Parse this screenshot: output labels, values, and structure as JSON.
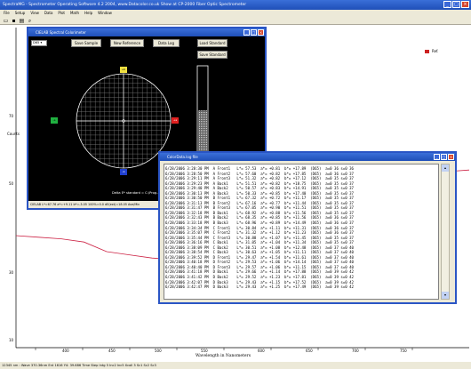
{
  "app": {
    "title": "SpectraMG - Spectrometer Operating Software 4.2 2004, www.Datacolor.co.uk  Show at CP-2000 Fiber Optic Spectrometer",
    "menu": [
      "File",
      "Setup",
      "View",
      "Data",
      "Plot",
      "Math",
      "Help",
      "Window"
    ],
    "toolbar_icons": [
      "open-icon",
      "save-icon",
      "print-icon",
      "zoom-icon"
    ],
    "legend_label": "Ref.",
    "x_axis_label": "Wavelength in Nanometers",
    "y_axis_label": "Counts",
    "y_ticks": [
      "70",
      "50",
      "30",
      "10"
    ],
    "x_ticks": [
      "400",
      "450",
      "500",
      "550",
      "600",
      "650",
      "700",
      "750"
    ],
    "status": "12345 nm :  Wave 370.36nm  Ent 1616  Y4: 39.686  Time Step  Intg 5  Inc2  Inc5  Xcoll 3  Sc1  Sc2  Sc3"
  },
  "chart_data": {
    "type": "line",
    "series": [
      {
        "name": "Ref.",
        "x": [
          380,
          400,
          420,
          440,
          460,
          480,
          500,
          520,
          540,
          560,
          580,
          600,
          620,
          640,
          660,
          680,
          700,
          720,
          740,
          760,
          780
        ],
        "values": [
          35,
          34.5,
          34,
          33,
          30,
          29,
          28,
          27.5,
          27,
          26,
          25,
          27,
          32,
          37,
          44,
          50,
          54,
          54.6,
          55,
          55,
          55.5
        ]
      }
    ],
    "xlim": [
      380,
      780
    ],
    "ylim": [
      0,
      100
    ],
    "grid": false,
    "legend": "top-right"
  },
  "cielab": {
    "title": "CIELAB Spectral Colorimeter",
    "observer": "D65",
    "buttons": {
      "save_sample": "Save Sample",
      "new_reference": "New Reference",
      "data_log": "Data Log",
      "load_standard": "Load Standard",
      "save_standard": "Save Standard"
    },
    "markers": {
      "top": "+b",
      "bottom": "-b",
      "left": "-a",
      "right": "+a"
    },
    "standard_text": "Delta E* standard = C:\\Prog...",
    "status": "CIELAB L*=67.76  a*=+9.11  b*=-3.05  100%=0.0  dE(ext)=18.05  Ave/Min",
    "lightness_fraction": 0.62
  },
  "log": {
    "title": "ColorData.log file",
    "lines": [
      "6/28/2006 3:28:30 PM  A Front1   L*= 57.53  a*= +0.81  b*= +17.89  (D65)  a=0 36 s=0 36",
      "6/28/2006 3:28:50 PM  A Front2   L*= 57.60  a*= +0.82  b*= +17.85  (D65)  a=0 36 s=0 37",
      "6/28/2006 3:29:11 PM  A Front3   L*= 51.32  a*= +0.82  b*= +17.12  (D65)  a=0 35 s=0 37",
      "6/28/2006 3:29:23 PM  A Back1    L*= 51.51  a*= +0.82  b*= +18.75  (D65)  a=0 35 s=0 37",
      "6/28/2006 3:29:40 PM  A Back2    L*= 50.57  a*= +0.83  b*= +14.91  (D65)  a=0 35 s=0 37",
      "6/28/2006 3:30:13 PM  A Back3    L*= 50.33  a*= +0.85  b*= +17.40  (D65)  a=0 35 s=0 37",
      "6/28/2006 3:30:50 PM  B Front1   L*= 67.32  a*= +0.72  b*= +11.17  (D65)  a=0 35 s=0 37",
      "6/28/2006 3:31:13 PM  B Front2   L*= 67.16  a*= +0.77  b*= +11.44  (D65)  a=0 35 s=0 37",
      "6/28/2006 3:31:47 PM  B Front3   L*= 67.05  a*= +0.90  b*= +11.51  (D65)  a=0 35 s=0 37",
      "6/28/2006 3:32:18 PM  B Back1    L*= 68.92  a*= +0.88  b*= +11.56  (D65)  a=0 35 s=0 37",
      "6/28/2006 3:32:43 PM  B Back2    L*= 68.35  a*= +0.85  b*= +11.56  (D65)  a=0 36 s=0 37",
      "6/28/2006 3:33:18 PM  B Back3    L*= 68.96  a*= +0.89  b*= +14.49  (D65)  a=0 36 s=0 37",
      "6/28/2006 3:34:34 PM  C Front1   L*= 30.84  a*= +1.11  b*= +11.31  (D65)  a=0 36 s=0 37",
      "6/28/2006 3:35:07 PM  C Front2   L*= 31.32  a*= +1.12  b*= +11.23  (D65)  a=0 36 s=0 37",
      "6/28/2006 3:35:44 PM  C Front3   L*= 30.88  a*= +1.07  b*= +11.45  (D65)  a=0 35 s=0 37",
      "6/28/2006 3:36:16 PM  C Back1    L*= 31.05  a*= +1.04  b*= +11.34  (D65)  a=0 35 s=0 37",
      "6/28/2006 3:38:09 PM  C Back2    L*= 30.51  a*= +1.08  b*= +12.48  (D65)  a=0 37 s=0 40",
      "6/28/2006 3:38:54 PM  C Back3    L*= 30.63  a*= +1.05  b*= +11.11  (D65)  a=0 37 s=0 40",
      "6/28/2006 3:39:52 PM  D Front1   L*= 29.47  a*= +1.54  b*= +11.61  (D65)  a=0 37 s=0 40",
      "6/28/2006 3:40:18 PM  D Front2   L*= 29.53  a*= +1.06  b*= +14.14  (D65)  a=0 37 s=0 40",
      "6/28/2006 3:40:40 PM  D Front3   L*= 29.57  a*= +1.06  b*= +11.15  (D65)  a=0 37 s=0 40",
      "6/28/2006 3:41:18 PM  D Back1    L*= 29.66  a*= +1.14  b*= +17.88  (D65)  a=0 39 s=0 42",
      "6/28/2006 3:41:42 PM  D Back2    L*= 29.52  a*= +1.23  b*= +17.81  (D65)  a=0 39 s=0 42",
      "6/28/2006 3:42:07 PM  D Back3    L*= 29.43  a*= +1.15  b*= +17.52  (D65)  a=0 39 s=0 42",
      "6/28/2006 3:42:47 PM  D Back3    L*= 29.43  a*= +1.25  b*= +17.49  (D65)  a=0 39 s=0 42"
    ]
  }
}
